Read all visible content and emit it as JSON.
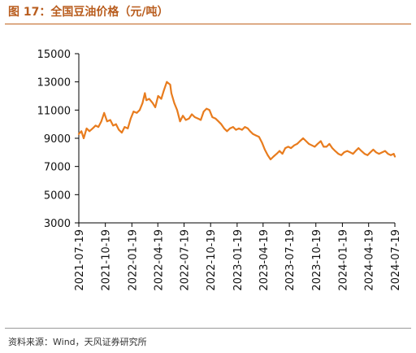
{
  "figure": {
    "title": "图 17：全国豆油价格（元/吨）",
    "source": "资料来源：Wind，天风证券研究所"
  },
  "chart_data": {
    "type": "line",
    "title": "",
    "xlabel": "",
    "ylabel": "",
    "ylim": [
      3000,
      15000
    ],
    "yticks": [
      3000,
      5000,
      7000,
      9000,
      11000,
      13000,
      15000
    ],
    "xticks": [
      "2021-07-19",
      "2021-10-19",
      "2022-01-19",
      "2022-04-19",
      "2022-07-19",
      "2022-10-19",
      "2023-01-19",
      "2023-04-19",
      "2023-07-19",
      "2023-10-19",
      "2024-01-19",
      "2024-04-19",
      "2024-07-19"
    ],
    "grid": false,
    "legend": "none",
    "line_color": "#e87c1e",
    "series": [
      {
        "x": [
          "2021-07-19",
          "2021-07-28",
          "2021-08-05",
          "2021-08-15",
          "2021-08-25",
          "2021-09-05",
          "2021-09-15",
          "2021-09-25",
          "2021-10-05",
          "2021-10-15",
          "2021-10-25",
          "2021-11-05",
          "2021-11-15",
          "2021-11-25",
          "2021-12-05",
          "2021-12-15",
          "2021-12-25",
          "2022-01-05",
          "2022-01-15",
          "2022-01-25",
          "2022-02-05",
          "2022-02-15",
          "2022-02-25",
          "2022-03-05",
          "2022-03-10",
          "2022-03-20",
          "2022-04-01",
          "2022-04-10",
          "2022-04-20",
          "2022-05-01",
          "2022-05-10",
          "2022-05-20",
          "2022-06-01",
          "2022-06-05",
          "2022-06-15",
          "2022-06-25",
          "2022-07-05",
          "2022-07-15",
          "2022-07-25",
          "2022-08-05",
          "2022-08-15",
          "2022-08-25",
          "2022-09-05",
          "2022-09-15",
          "2022-09-25",
          "2022-10-05",
          "2022-10-15",
          "2022-10-25",
          "2022-11-05",
          "2022-11-15",
          "2022-11-25",
          "2022-12-05",
          "2022-12-15",
          "2022-12-25",
          "2023-01-05",
          "2023-01-15",
          "2023-01-25",
          "2023-02-05",
          "2023-02-15",
          "2023-02-25",
          "2023-03-05",
          "2023-03-15",
          "2023-03-25",
          "2023-04-05",
          "2023-04-15",
          "2023-04-25",
          "2023-05-05",
          "2023-05-15",
          "2023-05-25",
          "2023-06-05",
          "2023-06-15",
          "2023-06-25",
          "2023-07-05",
          "2023-07-15",
          "2023-07-25",
          "2023-08-05",
          "2023-08-15",
          "2023-08-25",
          "2023-09-05",
          "2023-09-15",
          "2023-09-25",
          "2023-10-05",
          "2023-10-15",
          "2023-10-25",
          "2023-11-05",
          "2023-11-15",
          "2023-11-25",
          "2023-12-05",
          "2023-12-15",
          "2023-12-25",
          "2024-01-05",
          "2024-01-15",
          "2024-01-25",
          "2024-02-05",
          "2024-02-15",
          "2024-02-25",
          "2024-03-05",
          "2024-03-15",
          "2024-03-25",
          "2024-04-05",
          "2024-04-15",
          "2024-04-25",
          "2024-05-05",
          "2024-05-15",
          "2024-05-25",
          "2024-06-05",
          "2024-06-15",
          "2024-06-25",
          "2024-07-05",
          "2024-07-15",
          "2024-07-19"
        ],
        "values": [
          9300,
          9500,
          9000,
          9700,
          9500,
          9700,
          9900,
          9800,
          10200,
          10800,
          10200,
          10300,
          9900,
          10000,
          9600,
          9400,
          9800,
          9700,
          10400,
          10900,
          10800,
          11000,
          11500,
          12200,
          11700,
          11800,
          11500,
          11200,
          12000,
          11800,
          12400,
          13000,
          12800,
          12200,
          11500,
          11000,
          10200,
          10600,
          10300,
          10400,
          10700,
          10500,
          10400,
          10300,
          10900,
          11100,
          11000,
          10500,
          10400,
          10200,
          10000,
          9700,
          9500,
          9700,
          9800,
          9600,
          9700,
          9600,
          9800,
          9700,
          9500,
          9300,
          9200,
          9100,
          8700,
          8200,
          7800,
          7500,
          7700,
          7900,
          8100,
          7900,
          8300,
          8400,
          8300,
          8500,
          8600,
          8800,
          9000,
          8800,
          8600,
          8500,
          8400,
          8600,
          8800,
          8400,
          8400,
          8600,
          8300,
          8100,
          7900,
          7800,
          8000,
          8100,
          8000,
          7900,
          8100,
          8300,
          8100,
          7900,
          7800,
          8000,
          8200,
          8000,
          7900,
          8000,
          8100,
          7900,
          7800,
          7900,
          7700
        ]
      }
    ]
  }
}
